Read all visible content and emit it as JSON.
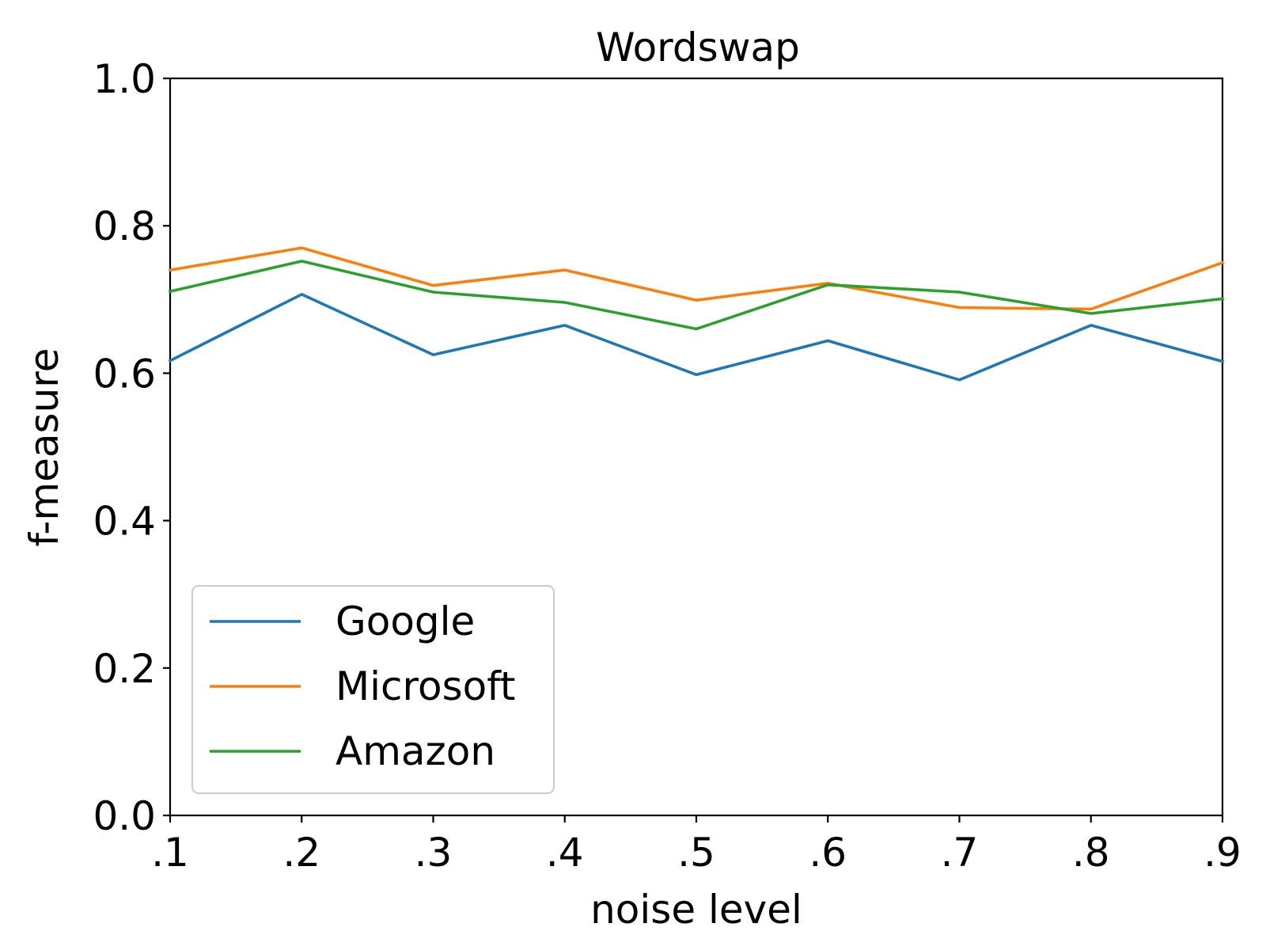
{
  "chart_data": {
    "type": "line",
    "title": "Wordswap",
    "xlabel": "noise level",
    "ylabel": "f-measure",
    "categories": [
      ".1",
      ".2",
      ".3",
      ".4",
      ".5",
      ".6",
      ".7",
      ".8",
      ".9"
    ],
    "ylim": [
      0,
      1
    ],
    "yticks": [
      "0.0",
      "0.2",
      "0.4",
      "0.6",
      "0.8",
      "1.0"
    ],
    "grid": false,
    "legend_position": "lower-left",
    "series": [
      {
        "name": "Google",
        "color": "#1f77b4",
        "values": [
          0.617,
          0.707,
          0.625,
          0.665,
          0.598,
          0.644,
          0.591,
          0.665,
          0.616
        ]
      },
      {
        "name": "Microsoft",
        "color": "#ff7f0e",
        "values": [
          0.74,
          0.77,
          0.719,
          0.74,
          0.699,
          0.722,
          0.689,
          0.687,
          0.75
        ]
      },
      {
        "name": "Amazon",
        "color": "#2ca02c",
        "values": [
          0.711,
          0.752,
          0.71,
          0.696,
          0.66,
          0.72,
          0.71,
          0.681,
          0.701
        ]
      }
    ]
  }
}
